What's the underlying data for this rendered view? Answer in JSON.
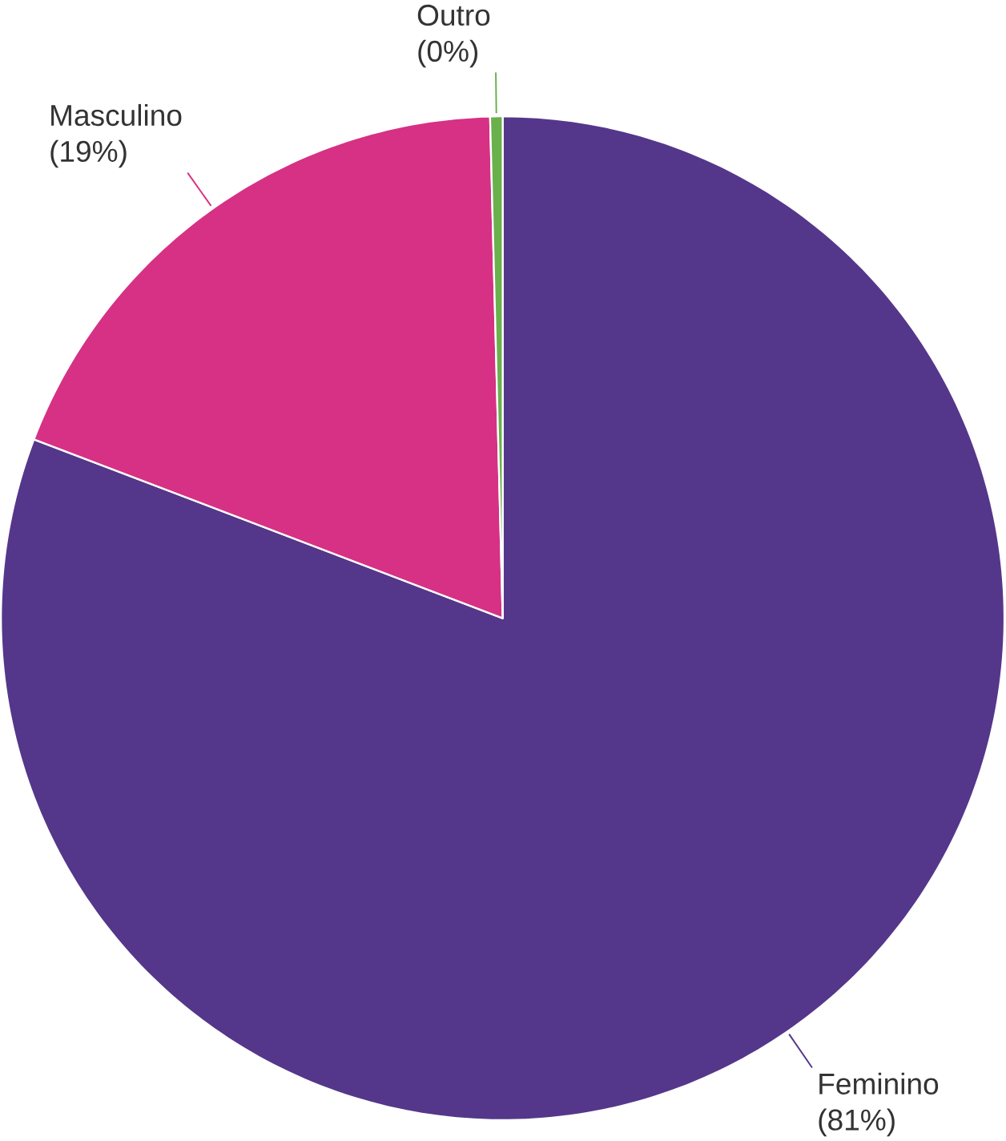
{
  "chart_data": {
    "type": "pie",
    "categories": [
      "Feminino",
      "Masculino",
      "Outro"
    ],
    "values": [
      80.8,
      18.8,
      0.4
    ],
    "value_labels": [
      "(81%)",
      "(19%)",
      "(0%)"
    ],
    "colors": [
      "#54378a",
      "#d63184",
      "#6ab04c"
    ]
  }
}
